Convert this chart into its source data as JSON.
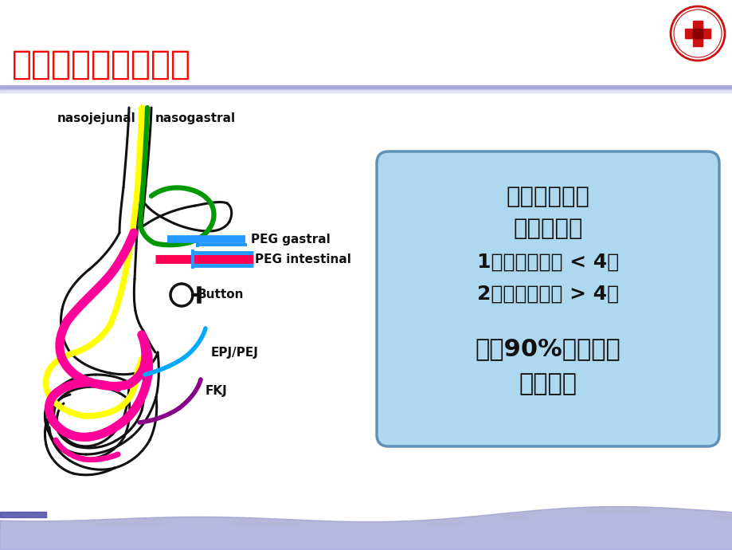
{
  "title": "肠内营养通道的建立",
  "title_color": "#FF0000",
  "title_fontsize": 30,
  "bg_color": "#FFFFFF",
  "wave_color": "#8888CC",
  "box_bg_color": "#ADD8F0",
  "box_border_color": "#6090B8",
  "box_line1": "肠内营养途径",
  "box_line2": "选择原则：",
  "box_line3": "1、经鼻置管： < 4周",
  "box_line4": "2、经皮造瘘： > 4周",
  "box_line5": "临床90%以上采用",
  "box_line6": "经鼻置管",
  "lbl_nasojejunal": "nasojejunal",
  "lbl_nasogastral": "nasogastral",
  "lbl_peg_gastral": "PEG gastral",
  "lbl_peg_intestinal": "PEG intestinal",
  "lbl_button": "Button",
  "lbl_epj": "EPJ/PEJ",
  "lbl_fkj": "FKJ",
  "c_yellow": "#FFFF00",
  "c_green": "#009900",
  "c_magenta": "#FF0099",
  "c_cyan": "#00AAFF",
  "c_purple": "#880088",
  "c_blue_peg": "#2299FF",
  "c_red_peg": "#FF0055",
  "c_black": "#111111"
}
